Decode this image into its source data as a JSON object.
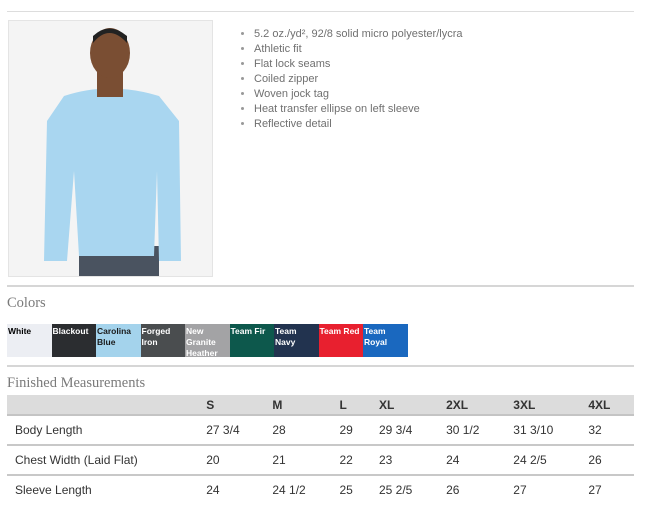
{
  "features": [
    "5.2 oz./yd², 92/8 solid micro polyester/lycra",
    "Athletic fit",
    "Flat lock seams",
    "Coiled zipper",
    "Woven jock tag",
    "Heat transfer ellipse on left sleeve",
    "Reflective detail"
  ],
  "colors_heading": "Colors",
  "colors": [
    {
      "name": "White",
      "bg": "#eceef3",
      "fg": "#000000"
    },
    {
      "name": "Blackout",
      "bg": "#2b2d30",
      "fg": "#ffffff"
    },
    {
      "name": "Carolina Blue",
      "bg": "#a4d3ec",
      "fg": "#1a1a1a"
    },
    {
      "name": "Forged Iron",
      "bg": "#4a4d4f",
      "fg": "#ffffff"
    },
    {
      "name": "New Granite Heather",
      "bg": "#a3a3a5",
      "fg": "#ffffff"
    },
    {
      "name": "Team Fir",
      "bg": "#0d584c",
      "fg": "#ffffff"
    },
    {
      "name": "Team Navy",
      "bg": "#22334f",
      "fg": "#ffffff"
    },
    {
      "name": "Team Red",
      "bg": "#e8202f",
      "fg": "#ffffff"
    },
    {
      "name": "Team Royal",
      "bg": "#1a68bf",
      "fg": "#ffffff"
    }
  ],
  "measurements_heading": "Finished Measurements",
  "measurements": {
    "sizes": [
      "",
      "S",
      "M",
      "L",
      "XL",
      "2XL",
      "3XL",
      "4XL"
    ],
    "rows": [
      [
        "Body Length",
        "27 3/4",
        "28",
        "29",
        "29 3/4",
        "30 1/2",
        "31 3/10",
        "32"
      ],
      [
        "Chest Width (Laid Flat)",
        "20",
        "21",
        "22",
        "23",
        "24",
        "24 2/5",
        "26"
      ],
      [
        "Sleeve Length",
        "24",
        "24 1/2",
        "25",
        "25 2/5",
        "26",
        "27",
        "27"
      ]
    ]
  }
}
